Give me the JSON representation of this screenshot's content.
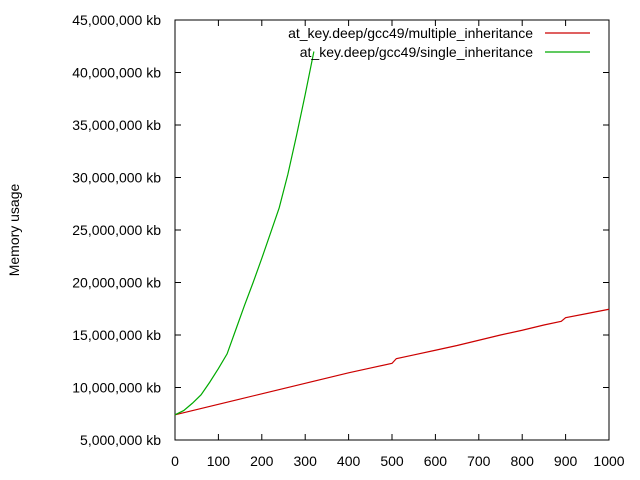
{
  "chart_data": {
    "type": "line",
    "title": "",
    "xlabel": "",
    "ylabel": "Memory usage",
    "xlim": [
      0,
      1000
    ],
    "ylim": [
      5000000,
      45000000
    ],
    "grid": false,
    "legend_position": "top-right",
    "x_ticks": [
      {
        "value": 0,
        "label": "0"
      },
      {
        "value": 100,
        "label": "100"
      },
      {
        "value": 200,
        "label": "200"
      },
      {
        "value": 300,
        "label": "300"
      },
      {
        "value": 400,
        "label": "400"
      },
      {
        "value": 500,
        "label": "500"
      },
      {
        "value": 600,
        "label": "600"
      },
      {
        "value": 700,
        "label": "700"
      },
      {
        "value": 800,
        "label": "800"
      },
      {
        "value": 900,
        "label": "900"
      },
      {
        "value": 1000,
        "label": "1000"
      }
    ],
    "y_ticks": [
      {
        "value": 5000000,
        "label": "5,000,000 kb"
      },
      {
        "value": 10000000,
        "label": "10,000,000 kb"
      },
      {
        "value": 15000000,
        "label": "15,000,000 kb"
      },
      {
        "value": 20000000,
        "label": "20,000,000 kb"
      },
      {
        "value": 25000000,
        "label": "25,000,000 kb"
      },
      {
        "value": 30000000,
        "label": "30,000,000 kb"
      },
      {
        "value": 35000000,
        "label": "35,000,000 kb"
      },
      {
        "value": 40000000,
        "label": "40,000,000 kb"
      },
      {
        "value": 45000000,
        "label": "45,000,000 kb"
      }
    ],
    "series": [
      {
        "name": "at_key.deep/gcc49/multiple_inheritance",
        "color": "#cc0000",
        "x": [
          0,
          50,
          100,
          150,
          200,
          250,
          300,
          350,
          400,
          450,
          500,
          510,
          550,
          600,
          650,
          700,
          750,
          800,
          850,
          890,
          900,
          950,
          1000
        ],
        "y": [
          7400000,
          7900000,
          8400000,
          8900000,
          9400000,
          9900000,
          10400000,
          10900000,
          11400000,
          11850000,
          12300000,
          12750000,
          13100000,
          13550000,
          14000000,
          14500000,
          15000000,
          15450000,
          15950000,
          16300000,
          16650000,
          17050000,
          17450000
        ]
      },
      {
        "name": "at_key.deep/gcc49/single_inheritance",
        "color": "#00aa00",
        "x": [
          0,
          20,
          40,
          60,
          80,
          100,
          120,
          140,
          160,
          180,
          200,
          220,
          240,
          260,
          280,
          300,
          320
        ],
        "y": [
          7400000,
          7800000,
          8500000,
          9300000,
          10500000,
          11800000,
          13200000,
          15500000,
          17800000,
          20000000,
          22300000,
          24700000,
          27100000,
          30300000,
          34000000,
          37900000,
          42000000
        ]
      }
    ]
  }
}
